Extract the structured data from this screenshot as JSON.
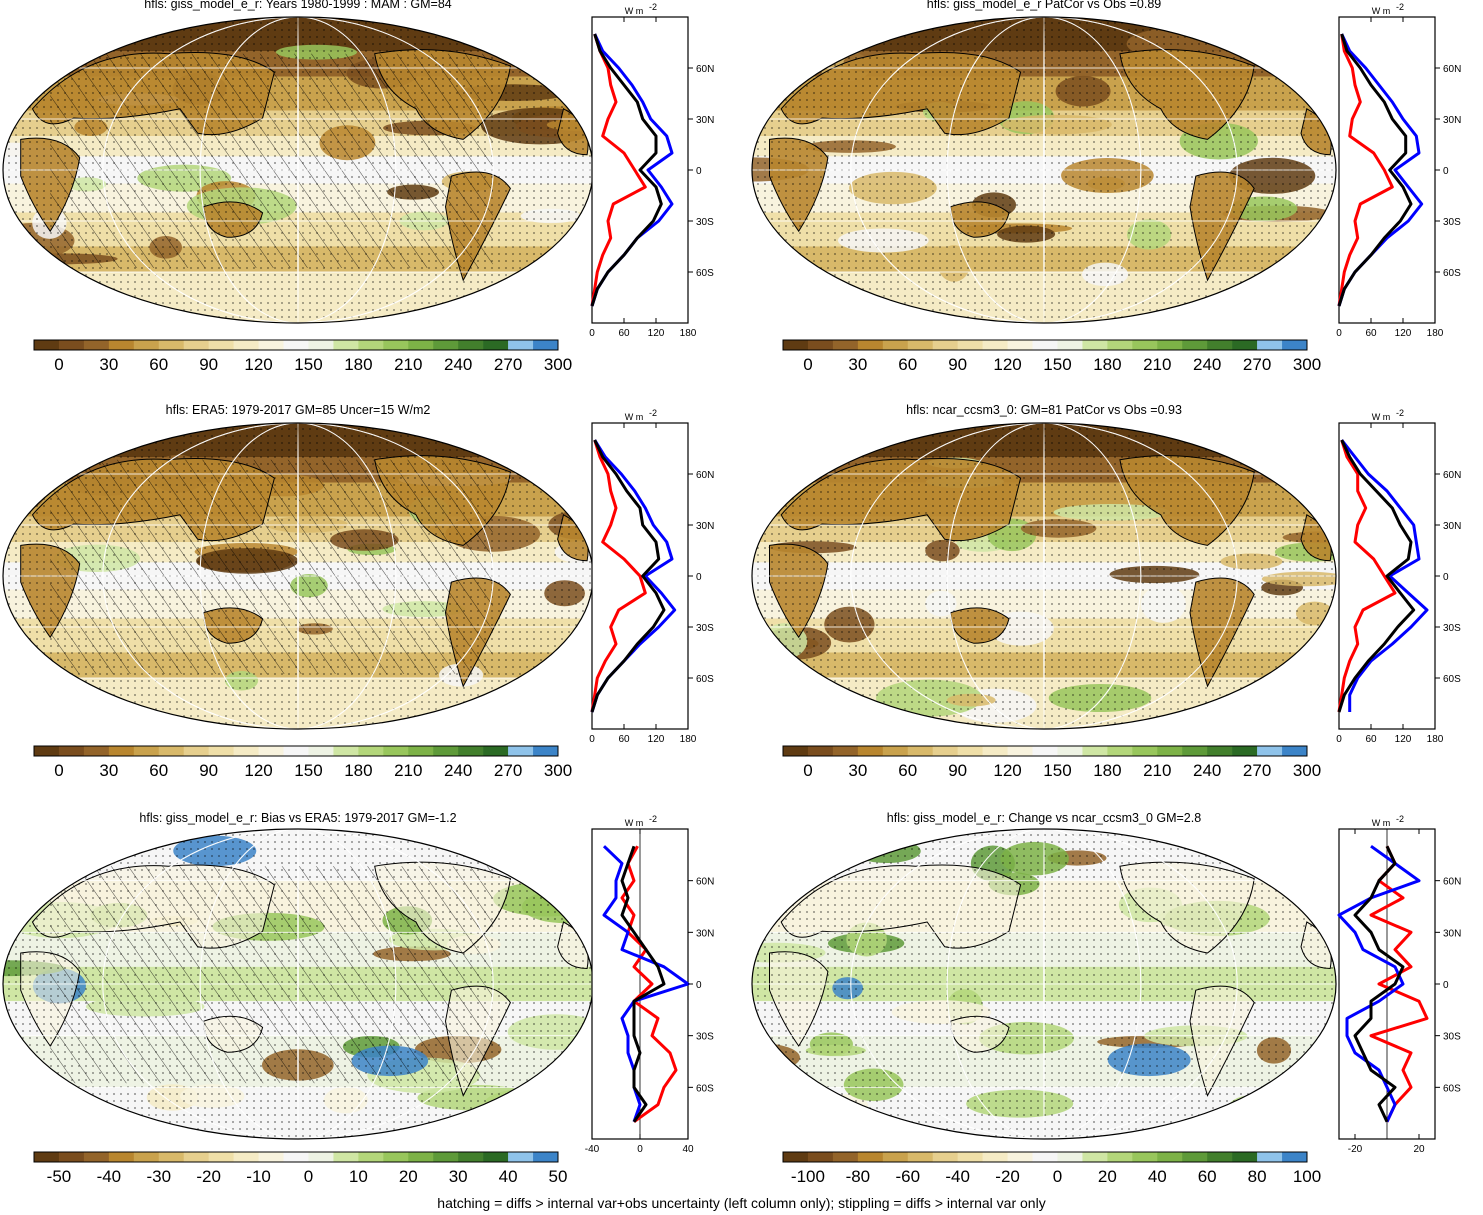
{
  "palettes": {
    "brown_green_blue": [
      "#5f3b12",
      "#7a4d1e",
      "#93642a",
      "#b8862f",
      "#c9a24d",
      "#d8b96a",
      "#e6cf8e",
      "#efdfa8",
      "#f5ebc5",
      "#f8f3de",
      "#f6f6f6",
      "#eef3e4",
      "#cfe6a4",
      "#b3d67a",
      "#98c65c",
      "#7db247",
      "#5e9a39",
      "#427f2c",
      "#2b6a24",
      "#8fc3ea",
      "#3c84c8"
    ],
    "profile_colors": {
      "model": "#ff0000",
      "obs": "#0000ff",
      "compare": "#000000"
    }
  },
  "panels": [
    {
      "id": "model-mean",
      "title": "hfls: giss_model_e_r: Years 1980-1999 : MAM : GM=84",
      "colorbar": {
        "labels": [
          "0",
          "30",
          "60",
          "90",
          "120",
          "150",
          "180",
          "210",
          "240",
          "270",
          "300"
        ]
      },
      "profile": {
        "unit": "W m",
        "unit_sup": "-2",
        "xticks": [
          "0",
          "60",
          "120",
          "180"
        ],
        "xlim": [
          0,
          180
        ],
        "yticks": [
          "60N",
          "30N",
          "0",
          "30S",
          "60S"
        ]
      },
      "overlay": {
        "hatching": true,
        "stippling": true
      }
    },
    {
      "id": "model-patcor",
      "title": "hfls: giss_model_e_r PatCor vs Obs =0.89",
      "colorbar": {
        "labels": [
          "0",
          "30",
          "60",
          "90",
          "120",
          "150",
          "180",
          "210",
          "240",
          "270",
          "300"
        ]
      },
      "profile": {
        "unit": "W m",
        "unit_sup": "-2",
        "xticks": [
          "0",
          "60",
          "120",
          "180"
        ],
        "xlim": [
          0,
          180
        ],
        "yticks": [
          "60N",
          "30N",
          "0",
          "30S",
          "60S"
        ]
      },
      "overlay": {
        "hatching": false,
        "stippling": true
      }
    },
    {
      "id": "obs-era5",
      "title": "hfls: ERA5: 1979-2017 GM=85 Uncer=15 W/m2",
      "colorbar": {
        "labels": [
          "0",
          "30",
          "60",
          "90",
          "120",
          "150",
          "180",
          "210",
          "240",
          "270",
          "300"
        ]
      },
      "profile": {
        "unit": "W m",
        "unit_sup": "-2",
        "xticks": [
          "0",
          "60",
          "120",
          "180"
        ],
        "xlim": [
          0,
          180
        ],
        "yticks": [
          "60N",
          "30N",
          "0",
          "30S",
          "60S"
        ]
      },
      "overlay": {
        "hatching": true,
        "stippling": true
      }
    },
    {
      "id": "compare-ncar",
      "title": "hfls: ncar_ccsm3_0: GM=81 PatCor vs Obs =0.93",
      "colorbar": {
        "labels": [
          "0",
          "30",
          "60",
          "90",
          "120",
          "150",
          "180",
          "210",
          "240",
          "270",
          "300"
        ]
      },
      "profile": {
        "unit": "W m",
        "unit_sup": "-2",
        "xticks": [
          "0",
          "60",
          "120",
          "180"
        ],
        "xlim": [
          0,
          180
        ],
        "yticks": [
          "60N",
          "30N",
          "0",
          "30S",
          "60S"
        ]
      },
      "overlay": {
        "hatching": false,
        "stippling": true
      }
    },
    {
      "id": "bias",
      "title": "hfls: giss_model_e_r: Bias vs ERA5: 1979-2017 GM=-1.2",
      "colorbar": {
        "labels": [
          "-50",
          "-40",
          "-30",
          "-20",
          "-10",
          "0",
          "10",
          "20",
          "30",
          "40",
          "50"
        ]
      },
      "profile": {
        "unit": "W m",
        "unit_sup": "-2",
        "xticks": [
          "-40",
          "0",
          "40"
        ],
        "xlim": [
          -40,
          40
        ],
        "yticks": [
          "60N",
          "30N",
          "0",
          "30S",
          "60S"
        ]
      },
      "overlay": {
        "hatching": true,
        "stippling": true
      }
    },
    {
      "id": "change",
      "title": "hfls: giss_model_e_r: Change vs ncar_ccsm3_0 GM=2.8",
      "colorbar": {
        "labels": [
          "-100",
          "-80",
          "-60",
          "-40",
          "-20",
          "0",
          "20",
          "40",
          "60",
          "80",
          "100"
        ]
      },
      "profile": {
        "unit": "W m",
        "unit_sup": "-2",
        "xticks": [
          "-20",
          "20"
        ],
        "xlim": [
          -30,
          30
        ],
        "yticks": [
          "60N",
          "30N",
          "0",
          "30S",
          "60S"
        ]
      },
      "overlay": {
        "hatching": false,
        "stippling": true
      }
    }
  ],
  "chart_data": {
    "type": "line",
    "lat_ticks": [
      "60N",
      "30N",
      "0",
      "30S",
      "60S"
    ],
    "panels": [
      {
        "id": "model-mean",
        "lat": [
          80,
          70,
          60,
          50,
          40,
          30,
          20,
          10,
          0,
          -10,
          -20,
          -30,
          -40,
          -50,
          -60,
          -70,
          -80
        ],
        "series": [
          {
            "name": "red",
            "values": [
              5,
              15,
              30,
              35,
              45,
              30,
              20,
              60,
              80,
              100,
              40,
              30,
              35,
              20,
              10,
              5,
              0
            ]
          },
          {
            "name": "blue",
            "values": [
              5,
              20,
              50,
              75,
              95,
              110,
              140,
              150,
              105,
              130,
              150,
              125,
              85,
              60,
              30,
              10,
              0
            ]
          },
          {
            "name": "black",
            "values": [
              5,
              15,
              35,
              60,
              85,
              95,
              120,
              120,
              90,
              120,
              130,
              115,
              85,
              60,
              30,
              10,
              0
            ]
          }
        ]
      },
      {
        "id": "model-patcor",
        "lat": [
          80,
          70,
          60,
          50,
          40,
          30,
          20,
          10,
          0,
          -10,
          -20,
          -30,
          -40,
          -50,
          -60,
          -70,
          -80
        ],
        "series": [
          {
            "name": "red",
            "values": [
              5,
              10,
              25,
              30,
              40,
              25,
              20,
              65,
              85,
              100,
              40,
              30,
              35,
              20,
              10,
              5,
              0
            ]
          },
          {
            "name": "blue",
            "values": [
              5,
              20,
              50,
              75,
              100,
              120,
              145,
              150,
              105,
              130,
              155,
              130,
              90,
              60,
              30,
              10,
              0
            ]
          },
          {
            "name": "black",
            "values": [
              5,
              15,
              40,
              60,
              85,
              100,
              125,
              125,
              95,
              120,
              135,
              115,
              85,
              60,
              30,
              10,
              0
            ]
          }
        ]
      },
      {
        "id": "obs-era5",
        "lat": [
          80,
          70,
          60,
          50,
          40,
          30,
          20,
          10,
          0,
          -10,
          -20,
          -30,
          -40,
          -50,
          -60,
          -70,
          -80
        ],
        "series": [
          {
            "name": "red",
            "values": [
              5,
              15,
              30,
              35,
              45,
              35,
              20,
              60,
              90,
              100,
              50,
              35,
              45,
              25,
              10,
              5,
              0
            ]
          },
          {
            "name": "blue",
            "values": [
              5,
              25,
              55,
              80,
              100,
              115,
              140,
              150,
              100,
              130,
              155,
              125,
              90,
              60,
              30,
              10,
              0
            ]
          },
          {
            "name": "black",
            "values": [
              5,
              20,
              45,
              65,
              90,
              95,
              120,
              125,
              95,
              120,
              135,
              115,
              85,
              60,
              30,
              10,
              0
            ]
          }
        ]
      },
      {
        "id": "compare-ncar",
        "lat": [
          80,
          70,
          60,
          50,
          40,
          30,
          20,
          10,
          0,
          -10,
          -20,
          -30,
          -40,
          -50,
          -60,
          -70,
          -80
        ],
        "series": [
          {
            "name": "red",
            "values": [
              5,
              15,
              35,
              35,
              50,
              35,
              30,
              65,
              85,
              105,
              45,
              30,
              35,
              20,
              10,
              5,
              0
            ]
          },
          {
            "name": "blue",
            "values": [
              5,
              30,
              55,
              90,
              115,
              140,
              145,
              150,
              95,
              130,
              165,
              135,
              100,
              60,
              35,
              20,
              20
            ]
          },
          {
            "name": "black",
            "values": [
              5,
              20,
              40,
              70,
              100,
              115,
              135,
              130,
              90,
              115,
              140,
              110,
              85,
              55,
              30,
              10,
              0
            ]
          }
        ]
      },
      {
        "id": "bias",
        "lat": [
          80,
          70,
          60,
          50,
          40,
          30,
          20,
          10,
          0,
          -10,
          -20,
          -30,
          -40,
          -50,
          -60,
          -70,
          -80
        ],
        "series": [
          {
            "name": "red",
            "values": [
              -2,
              -10,
              -5,
              -15,
              -5,
              -10,
              5,
              -5,
              10,
              -5,
              15,
              10,
              25,
              30,
              20,
              15,
              -5
            ]
          },
          {
            "name": "blue",
            "values": [
              -30,
              -15,
              -20,
              -20,
              -30,
              -10,
              -15,
              20,
              40,
              -5,
              -15,
              -10,
              -10,
              -5,
              -5,
              0,
              -5
            ]
          },
          {
            "name": "black",
            "values": [
              -5,
              -10,
              -15,
              -10,
              -15,
              -5,
              5,
              15,
              20,
              -5,
              -5,
              -5,
              0,
              -5,
              -5,
              5,
              -5
            ]
          }
        ]
      },
      {
        "id": "change",
        "lat": [
          80,
          70,
          60,
          50,
          40,
          30,
          20,
          10,
          0,
          -10,
          -20,
          -30,
          -40,
          -50,
          -60,
          -70,
          -80
        ],
        "series": [
          {
            "name": "red",
            "values": [
              0,
              5,
              -5,
              10,
              -10,
              15,
              5,
              15,
              -5,
              20,
              25,
              -10,
              15,
              10,
              15,
              5,
              0
            ]
          },
          {
            "name": "blue",
            "values": [
              -10,
              5,
              20,
              -10,
              -30,
              -20,
              -15,
              5,
              10,
              -5,
              -25,
              -25,
              -20,
              -5,
              0,
              5,
              0
            ]
          },
          {
            "name": "black",
            "values": [
              0,
              5,
              -5,
              -10,
              -20,
              -10,
              -5,
              10,
              5,
              -10,
              -10,
              -20,
              -15,
              -10,
              5,
              -5,
              0
            ]
          }
        ]
      }
    ]
  },
  "footnote": "hatching = diffs > internal var+obs uncertainty (left column only); stippling = diffs > internal var only"
}
